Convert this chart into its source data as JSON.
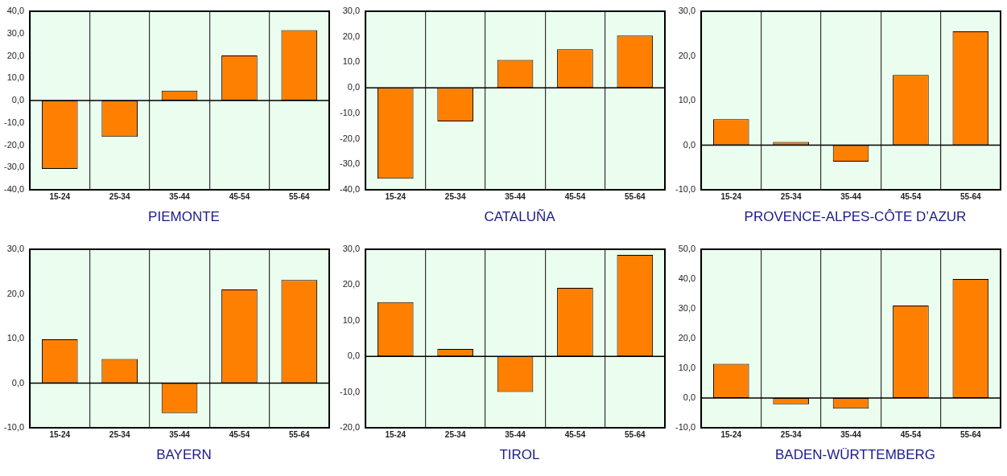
{
  "chart_data": [
    {
      "type": "bar",
      "title": "PIEMONTE",
      "categories": [
        "15-24",
        "25-34",
        "35-44",
        "45-54",
        "55-64"
      ],
      "values": [
        -30.6,
        -16.3,
        4.4,
        20.2,
        31.5
      ],
      "color": "#ff8000",
      "ylim": [
        -40,
        40
      ],
      "yticks": [
        {
          "value": -40,
          "label": "-40,0"
        },
        {
          "value": -30,
          "label": "-30,0"
        },
        {
          "value": -20,
          "label": "-20,0"
        },
        {
          "value": -10,
          "label": "-10,0"
        },
        {
          "value": 0,
          "label": "0,0"
        },
        {
          "value": 10,
          "label": "10,0"
        },
        {
          "value": 20,
          "label": "20,0"
        },
        {
          "value": 30,
          "label": "30,0"
        },
        {
          "value": 40,
          "label": "40,0"
        }
      ],
      "grid": "x"
    },
    {
      "type": "bar",
      "title": "CATALUÑA",
      "categories": [
        "15-24",
        "25-34",
        "35-44",
        "45-54",
        "55-64"
      ],
      "values": [
        -35.7,
        -13.2,
        10.9,
        15.1,
        20.5
      ],
      "color": "#ff8000",
      "ylim": [
        -40,
        30
      ],
      "yticks": [
        {
          "value": -40,
          "label": "-40,0"
        },
        {
          "value": -30,
          "label": "-30,0"
        },
        {
          "value": -20,
          "label": "-20,0"
        },
        {
          "value": -10,
          "label": "-10,0"
        },
        {
          "value": 0,
          "label": "0,0"
        },
        {
          "value": 10,
          "label": "10,0"
        },
        {
          "value": 20,
          "label": "20,0"
        },
        {
          "value": 30,
          "label": "30,0"
        }
      ],
      "grid": "x"
    },
    {
      "type": "bar",
      "title": "PROVENCE-ALPES-CÔTE D’AZUR",
      "categories": [
        "15-24",
        "25-34",
        "35-44",
        "45-54",
        "55-64"
      ],
      "values": [
        5.8,
        0.7,
        -3.7,
        15.7,
        25.5
      ],
      "color": "#ff8000",
      "ylim": [
        -10,
        30
      ],
      "yticks": [
        {
          "value": -10,
          "label": "-10,0"
        },
        {
          "value": 0,
          "label": "0,0"
        },
        {
          "value": 10,
          "label": "10,0"
        },
        {
          "value": 20,
          "label": "20,0"
        },
        {
          "value": 30,
          "label": "30,0"
        }
      ],
      "grid": "x"
    },
    {
      "type": "bar",
      "title": "BAYERN",
      "categories": [
        "15-24",
        "25-34",
        "35-44",
        "45-54",
        "55-64"
      ],
      "values": [
        9.8,
        5.4,
        -6.7,
        21.0,
        23.1
      ],
      "color": "#ff8000",
      "ylim": [
        -10,
        30
      ],
      "yticks": [
        {
          "value": -10,
          "label": "-10,0"
        },
        {
          "value": 0,
          "label": "0,0"
        },
        {
          "value": 10,
          "label": "10,0"
        },
        {
          "value": 20,
          "label": "20,0"
        },
        {
          "value": 30,
          "label": "30,0"
        }
      ],
      "grid": "x"
    },
    {
      "type": "bar",
      "title": "TIROL",
      "categories": [
        "15-24",
        "25-34",
        "35-44",
        "45-54",
        "55-64"
      ],
      "values": [
        15.2,
        2.1,
        -10.0,
        19.2,
        28.4
      ],
      "color": "#ff8000",
      "ylim": [
        -20,
        30
      ],
      "yticks": [
        {
          "value": -20,
          "label": "-20,0"
        },
        {
          "value": -10,
          "label": "-10,0"
        },
        {
          "value": 0,
          "label": "0,0"
        },
        {
          "value": 10,
          "label": "10,0"
        },
        {
          "value": 20,
          "label": "20,0"
        },
        {
          "value": 30,
          "label": "30,0"
        }
      ],
      "grid": "x"
    },
    {
      "type": "bar",
      "title": "BADEN-WÜRTTEMBERG",
      "categories": [
        "15-24",
        "25-34",
        "35-44",
        "45-54",
        "55-64"
      ],
      "values": [
        11.5,
        -2.1,
        -3.6,
        31.1,
        40.0
      ],
      "color": "#ff8000",
      "ylim": [
        -10,
        50
      ],
      "yticks": [
        {
          "value": -10,
          "label": "-10,0"
        },
        {
          "value": 0,
          "label": "0,0"
        },
        {
          "value": 10,
          "label": "10,0"
        },
        {
          "value": 20,
          "label": "20,0"
        },
        {
          "value": 30,
          "label": "30,0"
        },
        {
          "value": 40,
          "label": "40,0"
        },
        {
          "value": 50,
          "label": "50,0"
        }
      ],
      "grid": "x"
    }
  ]
}
